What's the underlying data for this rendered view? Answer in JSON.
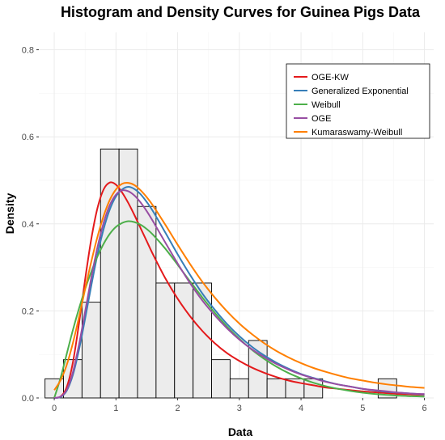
{
  "chart_data": {
    "type": "histogram",
    "title": "Histogram and Density Curves for Guinea Pigs Data",
    "xlabel": "Data",
    "ylabel": "Density",
    "xlim": [
      -0.25,
      6.15
    ],
    "ylim": [
      0,
      0.84
    ],
    "xticks": [
      0,
      1,
      2,
      3,
      4,
      5,
      6
    ],
    "yticks": [
      0.0,
      0.2,
      0.4,
      0.6,
      0.8
    ],
    "ytick_labels": [
      "0.0",
      "0.2",
      "0.4",
      "0.6",
      "0.8"
    ],
    "grid": true,
    "legend_position": "top-right",
    "bins": {
      "start": -0.15,
      "width": 0.3,
      "densities": [
        0.044,
        0.088,
        0.22,
        0.572,
        0.572,
        0.44,
        0.264,
        0.264,
        0.264,
        0.088,
        0.044,
        0.132,
        0.044,
        0.044,
        0.044,
        0.0,
        0.0,
        0.0,
        0.044,
        0.0
      ]
    },
    "x": [
      0.0,
      0.1,
      0.2,
      0.3,
      0.4,
      0.5,
      0.6,
      0.7,
      0.8,
      0.9,
      1.0,
      1.1,
      1.2,
      1.3,
      1.4,
      1.5,
      1.6,
      1.8,
      2.0,
      2.2,
      2.4,
      2.6,
      2.8,
      3.0,
      3.2,
      3.4,
      3.6,
      3.8,
      4.0,
      4.2,
      4.4,
      4.6,
      4.8,
      5.0,
      5.2,
      5.4,
      5.6,
      5.8,
      6.0
    ],
    "series": [
      {
        "name": "OGE-KW",
        "color": "#e41a1c",
        "values": [
          0.0,
          0.003,
          0.024,
          0.08,
          0.17,
          0.272,
          0.365,
          0.436,
          0.479,
          0.495,
          0.49,
          0.472,
          0.448,
          0.42,
          0.39,
          0.36,
          0.33,
          0.275,
          0.228,
          0.188,
          0.154,
          0.126,
          0.103,
          0.085,
          0.07,
          0.058,
          0.048,
          0.04,
          0.034,
          0.029,
          0.024,
          0.021,
          0.018,
          0.015,
          0.013,
          0.011,
          0.009,
          0.008,
          0.007
        ]
      },
      {
        "name": "Generalized Exponential",
        "color": "#377eb8",
        "values": [
          0.0,
          0.002,
          0.016,
          0.052,
          0.11,
          0.182,
          0.258,
          0.329,
          0.388,
          0.433,
          0.463,
          0.479,
          0.485,
          0.48,
          0.468,
          0.45,
          0.429,
          0.38,
          0.33,
          0.283,
          0.24,
          0.203,
          0.17,
          0.142,
          0.118,
          0.098,
          0.081,
          0.067,
          0.055,
          0.046,
          0.038,
          0.031,
          0.026,
          0.021,
          0.017,
          0.014,
          0.012,
          0.01,
          0.008
        ]
      },
      {
        "name": "Weibull",
        "color": "#4daf4a",
        "values": [
          0.0,
          0.045,
          0.1,
          0.155,
          0.205,
          0.25,
          0.29,
          0.325,
          0.354,
          0.377,
          0.393,
          0.402,
          0.406,
          0.404,
          0.398,
          0.388,
          0.375,
          0.343,
          0.306,
          0.268,
          0.231,
          0.196,
          0.164,
          0.136,
          0.111,
          0.09,
          0.072,
          0.057,
          0.045,
          0.035,
          0.027,
          0.021,
          0.016,
          0.012,
          0.009,
          0.007,
          0.005,
          0.004,
          0.003
        ]
      },
      {
        "name": "OGE",
        "color": "#984ea3",
        "values": [
          0.0,
          0.003,
          0.018,
          0.058,
          0.122,
          0.198,
          0.276,
          0.346,
          0.402,
          0.443,
          0.467,
          0.477,
          0.475,
          0.465,
          0.449,
          0.429,
          0.406,
          0.357,
          0.309,
          0.264,
          0.224,
          0.19,
          0.16,
          0.134,
          0.112,
          0.094,
          0.078,
          0.065,
          0.054,
          0.045,
          0.037,
          0.031,
          0.026,
          0.021,
          0.018,
          0.015,
          0.012,
          0.01,
          0.009
        ]
      },
      {
        "name": "Kumaraswamy-Weibull",
        "color": "#ff7f00",
        "values": [
          0.018,
          0.04,
          0.075,
          0.125,
          0.185,
          0.25,
          0.313,
          0.37,
          0.418,
          0.455,
          0.479,
          0.492,
          0.494,
          0.489,
          0.477,
          0.461,
          0.442,
          0.398,
          0.352,
          0.308,
          0.267,
          0.231,
          0.199,
          0.171,
          0.147,
          0.126,
          0.108,
          0.093,
          0.08,
          0.069,
          0.06,
          0.052,
          0.045,
          0.04,
          0.035,
          0.031,
          0.028,
          0.025,
          0.023
        ]
      }
    ]
  }
}
